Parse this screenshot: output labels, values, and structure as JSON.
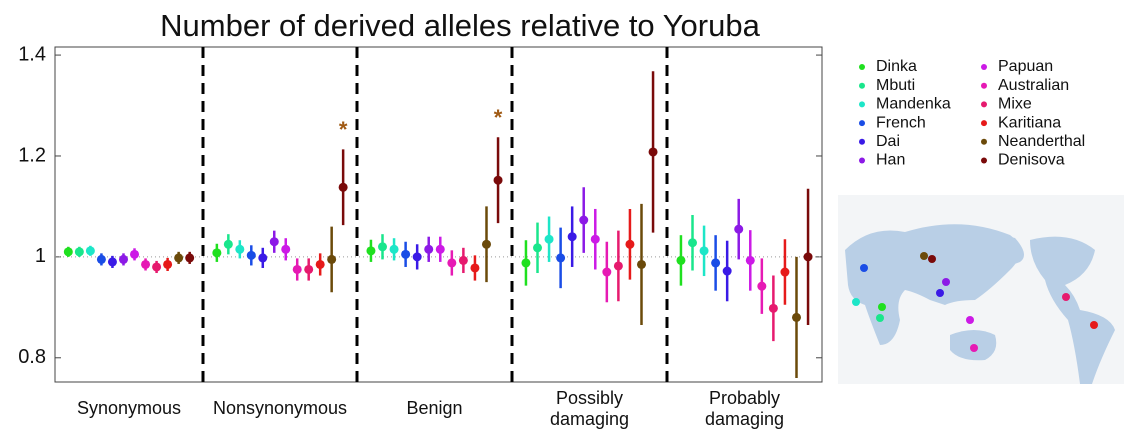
{
  "chart_data": {
    "type": "errorbar",
    "title": "Number of derived alleles relative to Yoruba",
    "categories": [
      "Synonymous",
      "Nonsynonymous",
      "Benign",
      "Possibly damaging",
      "Probably damaging"
    ],
    "ylim": [
      0.752,
      1.416
    ],
    "yticks": [
      0.8,
      1,
      1.2,
      1.4
    ],
    "hline": 1,
    "series": [
      {
        "name": "Dinka",
        "color": "#1fe01f",
        "values": [
          1.01,
          1.008,
          1.012,
          0.988,
          0.993
        ],
        "errors": [
          0.01,
          0.018,
          0.022,
          0.045,
          0.05
        ]
      },
      {
        "name": "Mbuti",
        "color": "#19e68c",
        "values": [
          1.01,
          1.025,
          1.02,
          1.018,
          1.028
        ],
        "errors": [
          0.01,
          0.02,
          0.025,
          0.05,
          0.055
        ]
      },
      {
        "name": "Mandenka",
        "color": "#1de6c8",
        "values": [
          1.012,
          1.015,
          1.015,
          1.035,
          1.012
        ],
        "errors": [
          0.01,
          0.018,
          0.022,
          0.045,
          0.05
        ]
      },
      {
        "name": "French",
        "color": "#1a4de6",
        "values": [
          0.995,
          1.003,
          1.005,
          0.998,
          0.988
        ],
        "errors": [
          0.012,
          0.02,
          0.025,
          0.06,
          0.055
        ]
      },
      {
        "name": "Dai",
        "color": "#3a1ae6",
        "values": [
          0.99,
          0.998,
          1.0,
          1.04,
          0.972
        ],
        "errors": [
          0.012,
          0.02,
          0.025,
          0.06,
          0.06
        ]
      },
      {
        "name": "Han",
        "color": "#8c1ae6",
        "values": [
          0.995,
          1.03,
          1.015,
          1.073,
          1.055
        ],
        "errors": [
          0.012,
          0.022,
          0.025,
          0.065,
          0.06
        ]
      },
      {
        "name": "Papuan",
        "color": "#cc1ae6",
        "values": [
          1.005,
          1.015,
          1.015,
          1.035,
          0.993
        ],
        "errors": [
          0.012,
          0.022,
          0.025,
          0.06,
          0.06
        ]
      },
      {
        "name": "Australian",
        "color": "#e61ab4",
        "values": [
          0.985,
          0.975,
          0.988,
          0.97,
          0.942
        ],
        "errors": [
          0.012,
          0.022,
          0.025,
          0.06,
          0.055
        ]
      },
      {
        "name": "Mixe",
        "color": "#e61a6e",
        "values": [
          0.98,
          0.975,
          0.993,
          0.982,
          0.898
        ],
        "errors": [
          0.012,
          0.022,
          0.025,
          0.07,
          0.065
        ]
      },
      {
        "name": "Karitiana",
        "color": "#e61a1a",
        "values": [
          0.985,
          0.985,
          0.978,
          1.025,
          0.97
        ],
        "errors": [
          0.013,
          0.022,
          0.025,
          0.07,
          0.065
        ]
      },
      {
        "name": "Neanderthal",
        "color": "#6b4a0a",
        "values": [
          0.998,
          0.995,
          1.025,
          0.985,
          0.88
        ],
        "errors": [
          0.012,
          0.065,
          0.075,
          0.12,
          0.12
        ]
      },
      {
        "name": "Denisova",
        "color": "#7a0a0a",
        "values": [
          0.998,
          1.138,
          1.152,
          1.208,
          1.0
        ],
        "errors": [
          0.012,
          0.075,
          0.085,
          0.16,
          0.135
        ],
        "annotations": [
          null,
          "*",
          "*",
          null,
          null
        ]
      }
    ]
  }
}
